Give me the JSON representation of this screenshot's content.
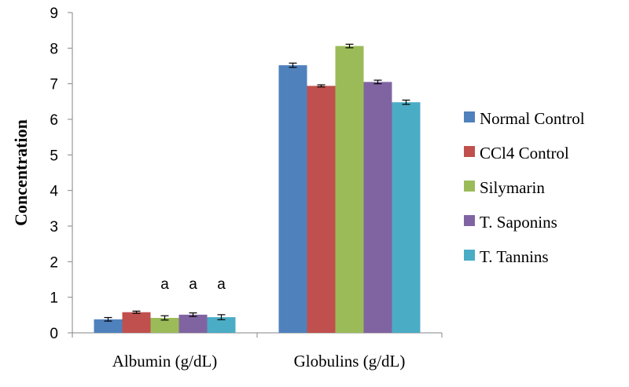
{
  "chart_data": {
    "type": "bar",
    "categories": [
      "Albumin (g/dL)",
      "Globulins (g/dL)"
    ],
    "series": [
      {
        "name": "Normal Control",
        "color": "#4F81BD",
        "values": [
          0.38,
          7.52
        ],
        "errors": [
          0.05,
          0.06
        ],
        "annotations": [
          "",
          ""
        ]
      },
      {
        "name": "CCl4 Control",
        "color": "#C0504D",
        "values": [
          0.58,
          6.94
        ],
        "errors": [
          0.03,
          0.03
        ],
        "annotations": [
          "",
          ""
        ]
      },
      {
        "name": "Silymarin",
        "color": "#9BBB59",
        "values": [
          0.42,
          8.06
        ],
        "errors": [
          0.06,
          0.05
        ],
        "annotations": [
          "a",
          ""
        ]
      },
      {
        "name": "T. Saponins",
        "color": "#8064A2",
        "values": [
          0.51,
          7.05
        ],
        "errors": [
          0.05,
          0.05
        ],
        "annotations": [
          "a",
          ""
        ]
      },
      {
        "name": "T. Tannins",
        "color": "#4BACC6",
        "values": [
          0.44,
          6.48
        ],
        "errors": [
          0.07,
          0.06
        ],
        "annotations": [
          "a",
          ""
        ]
      }
    ],
    "title": "",
    "xlabel": "",
    "ylabel": "Concentration",
    "ylim": [
      0,
      9
    ],
    "yticks": [
      "0",
      "1",
      "2",
      "3",
      "4",
      "5",
      "6",
      "7",
      "8",
      "9"
    ],
    "grid": false,
    "legend": "right"
  }
}
